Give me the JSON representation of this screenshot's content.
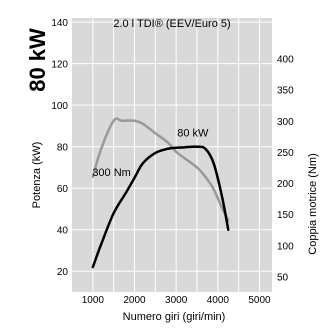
{
  "power_badge": "80 kW",
  "chart_data": {
    "type": "line",
    "title": "2.0 l TDI® (EEV/Euro 5)",
    "xlabel": "Numero giri (giri/min)",
    "ylabel_left": "Potenza (kW)",
    "ylabel_right": "Coppia motrice (Nm)",
    "xlim": [
      500,
      5300
    ],
    "ylim_left": [
      10,
      142
    ],
    "ylim_right": [
      25,
      465
    ],
    "xticks": [
      1000,
      1500,
      2000,
      2500,
      3000,
      3500,
      4000,
      4500,
      5000
    ],
    "yticks_left": [
      20,
      40,
      60,
      80,
      100,
      120,
      140
    ],
    "yticks_right": [
      50,
      100,
      150,
      200,
      250,
      300,
      350,
      400
    ],
    "grid": true,
    "series": [
      {
        "name": "80 kW",
        "axis": "left",
        "color": "#000000",
        "x": [
          1000,
          1200,
          1500,
          1800,
          2000,
          2200,
          2500,
          2800,
          3000,
          3200,
          3500,
          3700,
          3900,
          4100,
          4250
        ],
        "y": [
          22,
          33,
          48,
          58,
          65,
          72,
          77,
          79,
          79.5,
          79.7,
          80,
          79,
          72,
          56,
          40
        ]
      },
      {
        "name": "300 Nm",
        "axis": "right",
        "color": "#999999",
        "x": [
          1000,
          1200,
          1500,
          1700,
          2000,
          2200,
          2500,
          2800,
          3000,
          3200,
          3500,
          3700,
          3900,
          4100,
          4250
        ],
        "y": [
          210,
          255,
          300,
          300,
          300,
          295,
          280,
          265,
          250,
          240,
          225,
          210,
          190,
          160,
          140
        ]
      }
    ]
  }
}
